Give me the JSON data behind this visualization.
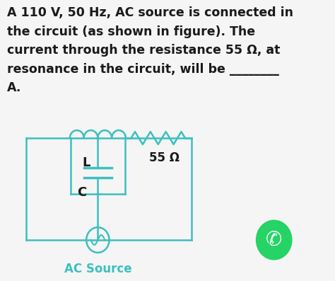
{
  "title_text": "A 110 V, 50 Hz, AC source is connected in\nthe circuit (as shown in figure). The\ncurrent through the resistance 55 Ω, at\nresonance in the circuit, will be ________\nA.",
  "circuit_color": "#3dbfbf",
  "background_color": "#f5f5f5",
  "text_color": "#1a1a1a",
  "font_size_title": 12.5,
  "inductor_label": "L",
  "capacitor_label": "C",
  "resistor_label": "55 Ω",
  "source_label": "AC Source",
  "whatsapp_color": "#25d366"
}
